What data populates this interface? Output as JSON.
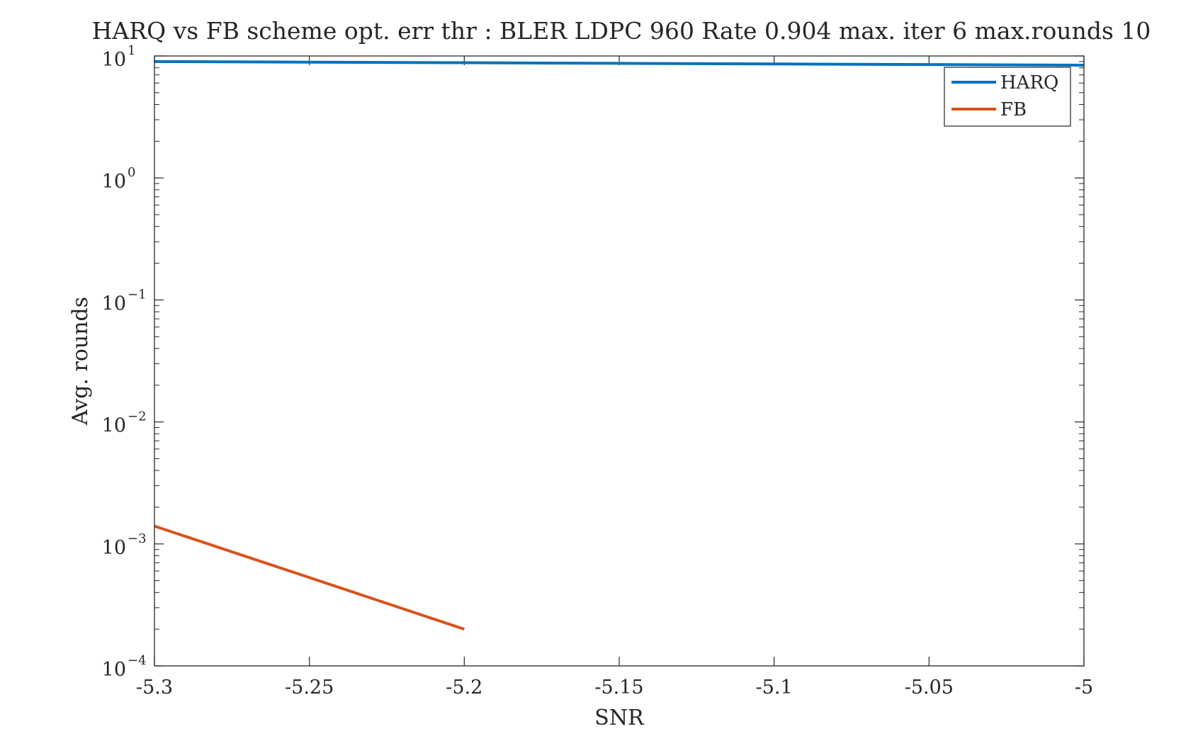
{
  "chart_data": {
    "type": "line",
    "title": "HARQ vs FB scheme opt. err thr : BLER LDPC 960 Rate 0.904 max. iter 6 max.rounds 10",
    "xlabel": "SNR",
    "ylabel": "Avg. rounds",
    "xlim": [
      -5.3,
      -5
    ],
    "ylim": [
      0.0001,
      10
    ],
    "yscale": "log",
    "x_ticks": [
      -5.3,
      -5.25,
      -5.2,
      -5.15,
      -5.1,
      -5.05,
      -5
    ],
    "x_tick_labels": [
      "-5.3",
      "-5.25",
      "-5.2",
      "-5.15",
      "-5.1",
      "-5.05",
      "-5"
    ],
    "y_ticks": [
      {
        "value": 10,
        "base": "10",
        "exp": "1"
      },
      {
        "value": 1,
        "base": "10",
        "exp": "0"
      },
      {
        "value": 0.1,
        "base": "10",
        "exp": "−1"
      },
      {
        "value": 0.01,
        "base": "10",
        "exp": "−2"
      },
      {
        "value": 0.001,
        "base": "10",
        "exp": "−3"
      },
      {
        "value": 0.0001,
        "base": "10",
        "exp": "−4"
      }
    ],
    "grid": false,
    "legend_position": "top-right",
    "series": [
      {
        "name": "HARQ",
        "color": "#0072BD",
        "x": [
          -5.3,
          -5.25,
          -5.2,
          -5.15,
          -5.1,
          -5.05,
          -5.0
        ],
        "y": [
          9.0,
          8.9,
          8.8,
          8.7,
          8.6,
          8.5,
          8.4
        ]
      },
      {
        "name": "FB",
        "color": "#D95319",
        "x": [
          -5.3,
          -5.25,
          -5.2
        ],
        "y": [
          0.0014,
          0.00053,
          0.0002
        ]
      }
    ]
  }
}
